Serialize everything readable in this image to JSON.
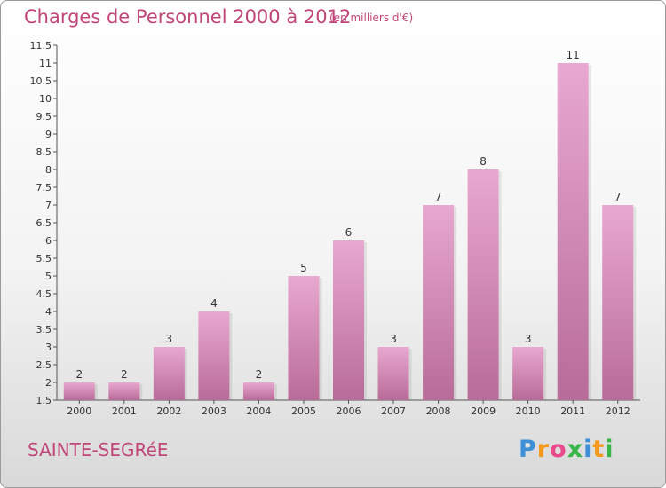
{
  "header": {
    "title": "Charges de Personnel 2000 à 2012",
    "unit": "(en milliers d'€)"
  },
  "footer": {
    "commune": "SAINTE-SEGRéE",
    "logo_letters": [
      "P",
      "r",
      "o",
      "x",
      "i",
      "t",
      "i"
    ],
    "logo_colors": [
      "#3f8fd6",
      "#f39a1e",
      "#e84a8c",
      "#39b54a",
      "#3f8fd6",
      "#f39a1e",
      "#39b54a"
    ]
  },
  "colors": {
    "title": "#c0467a",
    "bar_top": "#e8a8cf",
    "bar_bottom": "#b86c98"
  },
  "chart_data": {
    "type": "bar",
    "title": "Charges de Personnel 2000 à 2012",
    "categories": [
      "2000",
      "2001",
      "2002",
      "2003",
      "2004",
      "2005",
      "2006",
      "2007",
      "2008",
      "2009",
      "2010",
      "2011",
      "2012"
    ],
    "values": [
      2,
      2,
      3,
      4,
      2,
      5,
      6,
      3,
      7,
      8,
      3,
      11,
      7
    ],
    "data_labels": [
      "2",
      "2",
      "3",
      "4",
      "2",
      "5",
      "6",
      "3",
      "7",
      "8",
      "3",
      "11",
      "7"
    ],
    "ylim": [
      1.5,
      11.5
    ],
    "yticks": [
      1.5,
      2,
      2.5,
      3,
      3.5,
      4,
      4.5,
      5,
      5.5,
      6,
      6.5,
      7,
      7.5,
      8,
      8.5,
      9,
      9.5,
      10,
      10.5,
      11,
      11.5
    ],
    "ytick_labels": [
      "1.5",
      "2",
      "2.5",
      "3",
      "3.5",
      "4",
      "4.5",
      "5",
      "5.5",
      "6",
      "6.5",
      "7",
      "7.5",
      "8",
      "8.5",
      "9",
      "9.5",
      "10",
      "10.5",
      "11",
      "11.5"
    ],
    "grid": false,
    "legend": "none"
  }
}
